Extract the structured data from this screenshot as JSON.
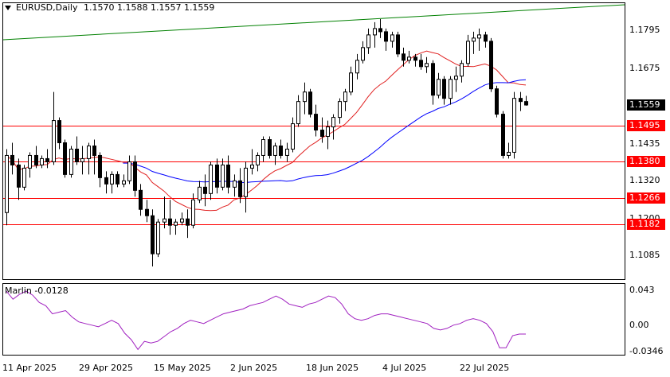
{
  "header": {
    "symbol": "EURUSD,Daily",
    "ohlc": "1.1570 1.1588 1.1557 1.1559"
  },
  "indicator": {
    "label": "Marlin -0.0128",
    "scale": [
      "0.043",
      "0.00",
      "-0.0346"
    ],
    "values": [
      0.04,
      0.03,
      0.036,
      0.04,
      0.035,
      0.026,
      0.022,
      0.012,
      0.014,
      0.016,
      0.008,
      0.002,
      0.0,
      -0.002,
      -0.004,
      0.0,
      0.004,
      0.0,
      -0.012,
      -0.02,
      -0.032,
      -0.022,
      -0.024,
      -0.022,
      -0.016,
      -0.01,
      -0.006,
      0.0,
      0.004,
      0.002,
      0.0,
      0.004,
      0.008,
      0.012,
      0.014,
      0.016,
      0.018,
      0.022,
      0.024,
      0.026,
      0.03,
      0.034,
      0.03,
      0.024,
      0.022,
      0.02,
      0.024,
      0.026,
      0.03,
      0.034,
      0.032,
      0.024,
      0.012,
      0.006,
      0.004,
      0.006,
      0.01,
      0.012,
      0.012,
      0.01,
      0.008,
      0.006,
      0.004,
      0.002,
      0.0,
      -0.006,
      -0.008,
      -0.006,
      -0.002,
      0.0,
      0.004,
      0.006,
      0.004,
      0.0,
      -0.01,
      -0.03,
      -0.03,
      -0.015,
      -0.013,
      -0.013
    ]
  },
  "price_axis": {
    "labels": [
      "1.1795",
      "1.1675",
      "1.1435",
      "1.1320",
      "1.1200",
      "1.1085"
    ],
    "current": "1.1559",
    "levels": [
      {
        "label": "1.1495",
        "value": 1.1495
      },
      {
        "label": "1.1380",
        "value": 1.138
      },
      {
        "label": "1.1266",
        "value": 1.1266
      },
      {
        "label": "1.1182",
        "value": 1.1182
      }
    ]
  },
  "time_axis": {
    "labels": [
      "11 Apr 2025",
      "29 Apr 2025",
      "15 May 2025",
      "2 Jun 2025",
      "18 Jun 2025",
      "4 Jul 2025",
      "22 Jul 2025"
    ]
  },
  "colors": {
    "bull": "#ffffff",
    "bear": "#000000",
    "level_line": "#ff0000",
    "ma_red": "#e02020",
    "ma_blue": "#0000ff",
    "channel": "#008000",
    "marlin": "#a020c0",
    "price_tag": "#000000",
    "level_tag": "#ff0000"
  },
  "chart_data": {
    "type": "candlestick",
    "series": [
      {
        "name": "EURUSD,Daily",
        "ohlc": [
          [
            1.122,
            1.142,
            1.118,
            1.14
          ],
          [
            1.14,
            1.144,
            1.134,
            1.137
          ],
          [
            1.137,
            1.139,
            1.126,
            1.13
          ],
          [
            1.13,
            1.137,
            1.129,
            1.136
          ],
          [
            1.136,
            1.141,
            1.133,
            1.14
          ],
          [
            1.14,
            1.143,
            1.136,
            1.137
          ],
          [
            1.137,
            1.14,
            1.136,
            1.139
          ],
          [
            1.139,
            1.142,
            1.136,
            1.138
          ],
          [
            1.138,
            1.16,
            1.137,
            1.151
          ],
          [
            1.151,
            1.152,
            1.142,
            1.144
          ],
          [
            1.144,
            1.145,
            1.133,
            1.134
          ],
          [
            1.134,
            1.143,
            1.133,
            1.142
          ],
          [
            1.142,
            1.146,
            1.137,
            1.138
          ],
          [
            1.138,
            1.143,
            1.134,
            1.139
          ],
          [
            1.139,
            1.144,
            1.134,
            1.143
          ],
          [
            1.143,
            1.145,
            1.134,
            1.14
          ],
          [
            1.14,
            1.141,
            1.13,
            1.133
          ],
          [
            1.133,
            1.135,
            1.128,
            1.131
          ],
          [
            1.131,
            1.135,
            1.128,
            1.134
          ],
          [
            1.134,
            1.135,
            1.13,
            1.131
          ],
          [
            1.131,
            1.134,
            1.13,
            1.132
          ],
          [
            1.132,
            1.14,
            1.131,
            1.138
          ],
          [
            1.138,
            1.14,
            1.127,
            1.129
          ],
          [
            1.129,
            1.131,
            1.121,
            1.123
          ],
          [
            1.123,
            1.126,
            1.119,
            1.121
          ],
          [
            1.121,
            1.123,
            1.105,
            1.109
          ],
          [
            1.109,
            1.12,
            1.108,
            1.119
          ],
          [
            1.119,
            1.127,
            1.117,
            1.12
          ],
          [
            1.12,
            1.126,
            1.115,
            1.118
          ],
          [
            1.118,
            1.12,
            1.115,
            1.119
          ],
          [
            1.119,
            1.122,
            1.118,
            1.12
          ],
          [
            1.12,
            1.123,
            1.114,
            1.118
          ],
          [
            1.118,
            1.128,
            1.117,
            1.126
          ],
          [
            1.126,
            1.132,
            1.125,
            1.13
          ],
          [
            1.13,
            1.134,
            1.124,
            1.128
          ],
          [
            1.128,
            1.138,
            1.126,
            1.137
          ],
          [
            1.137,
            1.139,
            1.128,
            1.13
          ],
          [
            1.13,
            1.139,
            1.129,
            1.137
          ],
          [
            1.137,
            1.14,
            1.128,
            1.13
          ],
          [
            1.13,
            1.134,
            1.127,
            1.132
          ],
          [
            1.132,
            1.136,
            1.125,
            1.127
          ],
          [
            1.127,
            1.138,
            1.122,
            1.136
          ],
          [
            1.136,
            1.142,
            1.134,
            1.137
          ],
          [
            1.137,
            1.141,
            1.135,
            1.14
          ],
          [
            1.14,
            1.146,
            1.138,
            1.145
          ],
          [
            1.145,
            1.146,
            1.139,
            1.14
          ],
          [
            1.14,
            1.144,
            1.137,
            1.143
          ],
          [
            1.143,
            1.145,
            1.139,
            1.14
          ],
          [
            1.14,
            1.144,
            1.138,
            1.142
          ],
          [
            1.142,
            1.152,
            1.141,
            1.15
          ],
          [
            1.15,
            1.159,
            1.149,
            1.157
          ],
          [
            1.157,
            1.163,
            1.153,
            1.16
          ],
          [
            1.16,
            1.161,
            1.152,
            1.153
          ],
          [
            1.153,
            1.156,
            1.146,
            1.148
          ],
          [
            1.148,
            1.152,
            1.144,
            1.146
          ],
          [
            1.146,
            1.151,
            1.142,
            1.149
          ],
          [
            1.149,
            1.153,
            1.145,
            1.152
          ],
          [
            1.152,
            1.158,
            1.15,
            1.157
          ],
          [
            1.157,
            1.161,
            1.154,
            1.16
          ],
          [
            1.16,
            1.168,
            1.159,
            1.166
          ],
          [
            1.166,
            1.172,
            1.164,
            1.17
          ],
          [
            1.17,
            1.176,
            1.169,
            1.174
          ],
          [
            1.174,
            1.18,
            1.172,
            1.178
          ],
          [
            1.178,
            1.182,
            1.174,
            1.18
          ],
          [
            1.18,
            1.183,
            1.177,
            1.179
          ],
          [
            1.179,
            1.18,
            1.173,
            1.176
          ],
          [
            1.176,
            1.179,
            1.174,
            1.178
          ],
          [
            1.178,
            1.179,
            1.171,
            1.172
          ],
          [
            1.172,
            1.174,
            1.168,
            1.17
          ],
          [
            1.17,
            1.173,
            1.169,
            1.171
          ],
          [
            1.171,
            1.172,
            1.168,
            1.17
          ],
          [
            1.17,
            1.172,
            1.167,
            1.168
          ],
          [
            1.168,
            1.171,
            1.166,
            1.169
          ],
          [
            1.169,
            1.17,
            1.156,
            1.159
          ],
          [
            1.159,
            1.166,
            1.158,
            1.164
          ],
          [
            1.164,
            1.165,
            1.156,
            1.158
          ],
          [
            1.158,
            1.165,
            1.156,
            1.164
          ],
          [
            1.164,
            1.168,
            1.16,
            1.165
          ],
          [
            1.165,
            1.17,
            1.163,
            1.169
          ],
          [
            1.169,
            1.178,
            1.168,
            1.176
          ],
          [
            1.176,
            1.179,
            1.172,
            1.177
          ],
          [
            1.177,
            1.18,
            1.173,
            1.178
          ],
          [
            1.178,
            1.179,
            1.174,
            1.176
          ],
          [
            1.176,
            1.177,
            1.16,
            1.161
          ],
          [
            1.161,
            1.162,
            1.152,
            1.153
          ],
          [
            1.153,
            1.154,
            1.139,
            1.14
          ],
          [
            1.14,
            1.144,
            1.139,
            1.141
          ],
          [
            1.141,
            1.16,
            1.139,
            1.158
          ],
          [
            1.158,
            1.16,
            1.154,
            1.157
          ],
          [
            1.157,
            1.1588,
            1.1557,
            1.1559
          ]
        ]
      }
    ],
    "ylim": [
      1.101,
      1.188
    ]
  }
}
